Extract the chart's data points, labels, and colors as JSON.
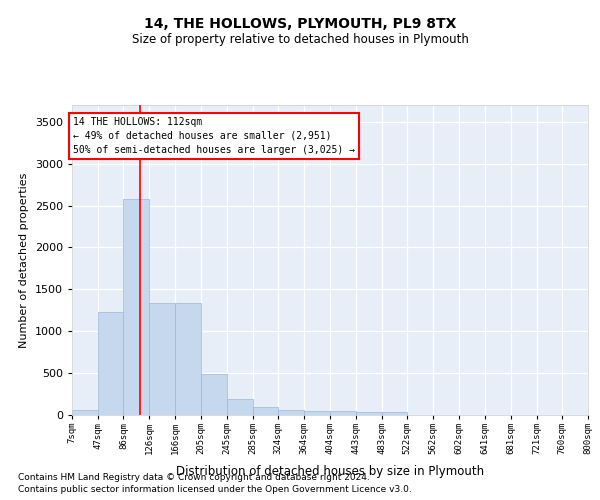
{
  "title": "14, THE HOLLOWS, PLYMOUTH, PL9 8TX",
  "subtitle": "Size of property relative to detached houses in Plymouth",
  "xlabel": "Distribution of detached houses by size in Plymouth",
  "ylabel": "Number of detached properties",
  "bar_color": "#c5d8ee",
  "bar_edge_color": "#9ab8d8",
  "background_color": "#e8eef8",
  "grid_color": "#ffffff",
  "annotation_line1": "14 THE HOLLOWS: 112sqm",
  "annotation_line2": "← 49% of detached houses are smaller (2,951)",
  "annotation_line3": "50% of semi-detached houses are larger (3,025) →",
  "red_line_x": 112,
  "footnote1": "Contains HM Land Registry data © Crown copyright and database right 2024.",
  "footnote2": "Contains public sector information licensed under the Open Government Licence v3.0.",
  "bins": [
    7,
    47,
    86,
    126,
    166,
    205,
    245,
    285,
    324,
    364,
    404,
    443,
    483,
    522,
    562,
    602,
    641,
    681,
    721,
    760,
    800
  ],
  "values": [
    55,
    1225,
    2575,
    1335,
    1335,
    490,
    190,
    100,
    55,
    50,
    50,
    35,
    30,
    5,
    5,
    3,
    2,
    1,
    1,
    1
  ],
  "ylim": [
    0,
    3700
  ],
  "yticks": [
    0,
    500,
    1000,
    1500,
    2000,
    2500,
    3000,
    3500
  ]
}
